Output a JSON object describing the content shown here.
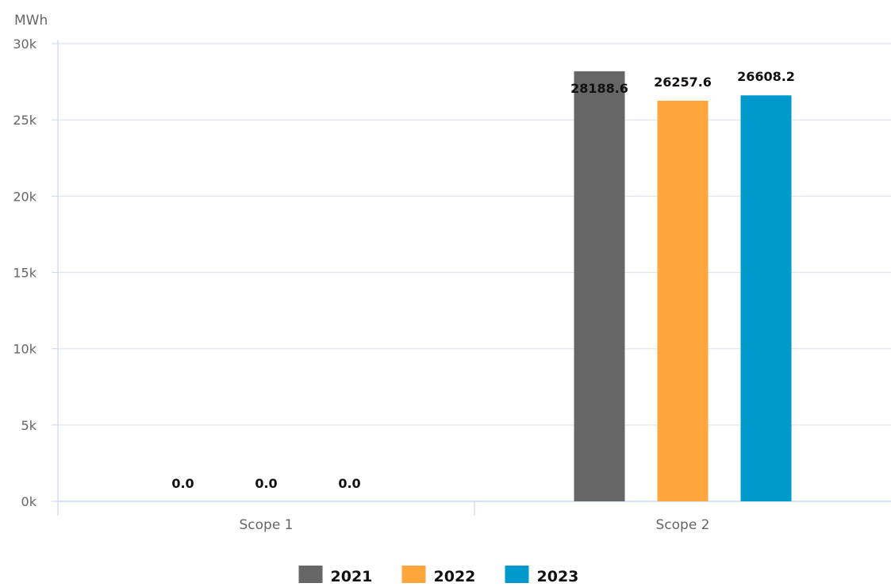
{
  "chart_data": {
    "type": "bar",
    "unit_label": "MWh",
    "categories": [
      "Scope 1",
      "Scope 2"
    ],
    "series": [
      {
        "name": "2021",
        "color": "#666666",
        "values": [
          0.0,
          28188.6
        ],
        "labels": [
          "0.0",
          "28188.6"
        ]
      },
      {
        "name": "2022",
        "color": "#FFA63D",
        "values": [
          0.0,
          26257.6
        ],
        "labels": [
          "0.0",
          "26257.6"
        ]
      },
      {
        "name": "2023",
        "color": "#0099CC",
        "values": [
          0.0,
          26608.2
        ],
        "labels": [
          "0.0",
          "26608.2"
        ]
      }
    ],
    "ylim": [
      0,
      30000
    ],
    "yticks": [
      0,
      5000,
      10000,
      15000,
      20000,
      25000,
      30000
    ],
    "ytick_labels": [
      "0k",
      "5k",
      "10k",
      "15k",
      "20k",
      "25k",
      "30k"
    ],
    "grid": true,
    "legend_position": "bottom-center"
  }
}
